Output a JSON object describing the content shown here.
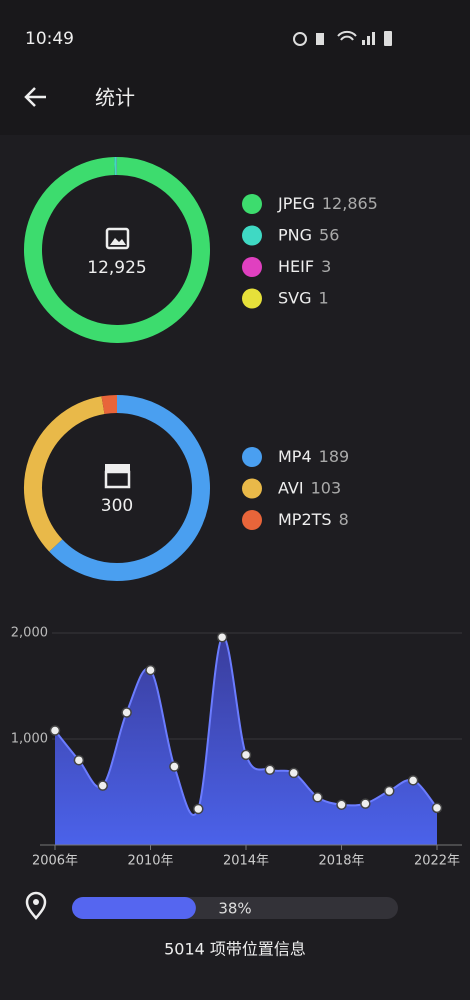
{
  "status_bar": {
    "time": "10:49"
  },
  "header": {
    "title": "统计"
  },
  "chart_data": [
    {
      "type": "donut",
      "center_label": "12,925",
      "categories": [
        "JPEG",
        "PNG",
        "HEIF",
        "SVG"
      ],
      "values": [
        12865,
        56,
        3,
        1
      ],
      "value_labels": [
        "12,865",
        "56",
        "3",
        "1"
      ],
      "colors": [
        "#3ddc6e",
        "#3fd9c4",
        "#e040c0",
        "#e6e03a"
      ]
    },
    {
      "type": "donut",
      "center_label": "300",
      "categories": [
        "MP4",
        "AVI",
        "MP2TS"
      ],
      "values": [
        189,
        103,
        8
      ],
      "value_labels": [
        "189",
        "103",
        "8"
      ],
      "colors": [
        "#4a9ff0",
        "#e9b949",
        "#e8653a"
      ]
    },
    {
      "type": "area",
      "x": [
        2006,
        2007,
        2008,
        2009,
        2010,
        2011,
        2012,
        2013,
        2014,
        2015,
        2016,
        2017,
        2018,
        2019,
        2020,
        2021,
        2022
      ],
      "values": [
        1080,
        800,
        560,
        1250,
        1650,
        740,
        340,
        1960,
        850,
        710,
        680,
        450,
        380,
        390,
        510,
        610,
        350
      ],
      "color": "#6b7cff",
      "xlim": [
        2006,
        2022
      ],
      "xticks": [
        {
          "value": 2006,
          "label": "2006年"
        },
        {
          "value": 2010,
          "label": "2010年"
        },
        {
          "value": 2014,
          "label": "2014年"
        },
        {
          "value": 2018,
          "label": "2018年"
        },
        {
          "value": 2022,
          "label": "2022年"
        }
      ],
      "ylim": [
        0,
        2000
      ],
      "yticks": [
        {
          "value": 1000,
          "label": "1,000"
        },
        {
          "value": 2000,
          "label": "2,000"
        }
      ],
      "grid": true
    }
  ],
  "location": {
    "value": 38,
    "value_label": "38%",
    "label": "5014 项带位置信息"
  }
}
